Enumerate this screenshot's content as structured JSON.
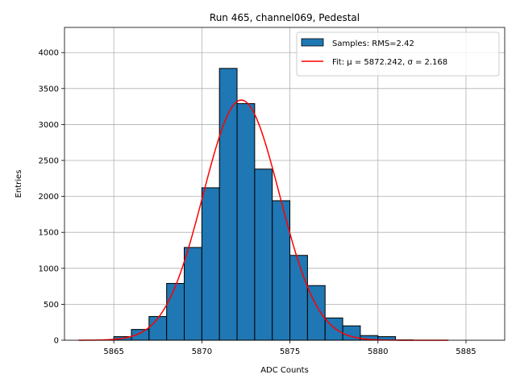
{
  "chart_data": {
    "type": "bar",
    "title": "Run 465, channel069, Pedestal",
    "xlabel": "ADC Counts",
    "ylabel": "Entries",
    "xlim": [
      5862.2,
      5887.2
    ],
    "ylim": [
      0,
      4350
    ],
    "xticks": [
      5865,
      5870,
      5875,
      5880,
      5885
    ],
    "yticks": [
      0,
      500,
      1000,
      1500,
      2000,
      2500,
      3000,
      3500,
      4000
    ],
    "grid": true,
    "legend_position": "top-right",
    "colors": {
      "bar_fill": "#1f77b4",
      "bar_edge": "#000000",
      "fit_line": "#ff0000",
      "grid": "#b0b0b0"
    },
    "series": [
      {
        "name": "Samples: RMS=2.42",
        "kind": "histogram",
        "bins": [
          {
            "start": 5863,
            "end": 5864,
            "count": 0
          },
          {
            "start": 5864,
            "end": 5865,
            "count": 5
          },
          {
            "start": 5865,
            "end": 5866,
            "count": 50
          },
          {
            "start": 5866,
            "end": 5867,
            "count": 150
          },
          {
            "start": 5867,
            "end": 5868,
            "count": 330
          },
          {
            "start": 5868,
            "end": 5869,
            "count": 790
          },
          {
            "start": 5869,
            "end": 5870,
            "count": 1290
          },
          {
            "start": 5870,
            "end": 5871,
            "count": 2120
          },
          {
            "start": 5871,
            "end": 5872,
            "count": 3780
          },
          {
            "start": 5872,
            "end": 5873,
            "count": 3290
          },
          {
            "start": 5873,
            "end": 5874,
            "count": 2380
          },
          {
            "start": 5874,
            "end": 5875,
            "count": 1940
          },
          {
            "start": 5875,
            "end": 5876,
            "count": 1180
          },
          {
            "start": 5876,
            "end": 5877,
            "count": 760
          },
          {
            "start": 5877,
            "end": 5878,
            "count": 310
          },
          {
            "start": 5878,
            "end": 5879,
            "count": 200
          },
          {
            "start": 5879,
            "end": 5880,
            "count": 65
          },
          {
            "start": 5880,
            "end": 5881,
            "count": 50
          },
          {
            "start": 5881,
            "end": 5882,
            "count": 5
          },
          {
            "start": 5882,
            "end": 5883,
            "count": 0
          },
          {
            "start": 5883,
            "end": 5884,
            "count": 0
          },
          {
            "start": 5884,
            "end": 5885,
            "count": 0
          },
          {
            "start": 5885,
            "end": 5886,
            "count": 0
          }
        ]
      },
      {
        "name": "Fit: μ = 5872.242, σ = 2.168",
        "kind": "gaussian",
        "mu": 5872.242,
        "sigma": 2.168,
        "amplitude": 3340,
        "x_range": [
          5863,
          5884
        ]
      }
    ]
  }
}
